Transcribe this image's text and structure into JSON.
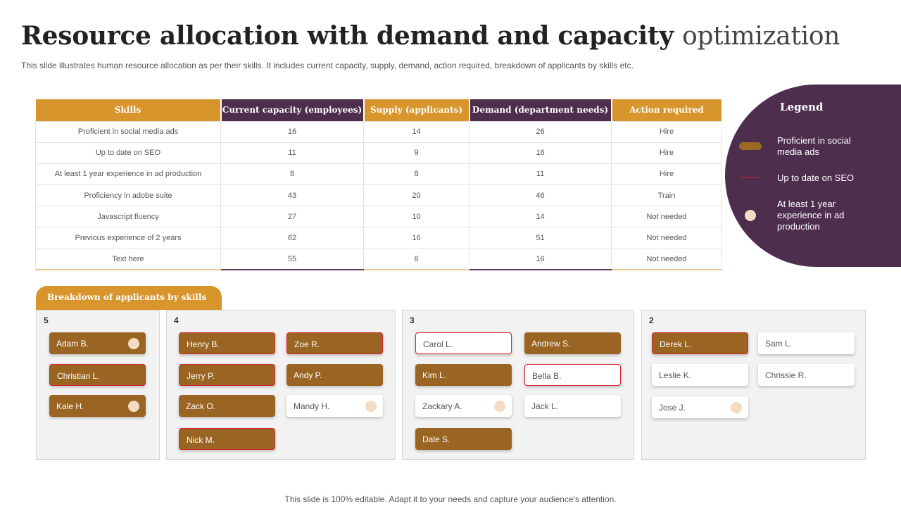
{
  "title_main": "Resource allocation with demand and capacity",
  "title_end": "optimization",
  "subtitle": "This slide illustrates human resource allocation as per their skills. It includes current capacity, supply, demand, action required, breakdown of applicants by skills etc.",
  "table": {
    "headers": [
      "Skills",
      "Current capacity (employees)",
      "Supply (applicants)",
      "Demand (department needs)",
      "Action required"
    ],
    "rows": [
      [
        "Proficient in social media ads",
        "16",
        "14",
        "26",
        "Hire"
      ],
      [
        "Up to date on SEO",
        "11",
        "9",
        "16",
        "Hire"
      ],
      [
        "At least 1 year experience in ad production",
        "8",
        "8",
        "11",
        "Hire"
      ],
      [
        "Proficiency in adobe suite",
        "43",
        "20",
        "46",
        "Train"
      ],
      [
        "Javascript fluency",
        "27",
        "10",
        "14",
        "Not needed"
      ],
      [
        "Previous experience of 2 years",
        "62",
        "16",
        "51",
        "Not needed"
      ],
      [
        "Text here",
        "55",
        "6",
        "16",
        "Not needed"
      ]
    ]
  },
  "legend": {
    "title": "Legend",
    "items": [
      "Proficient in social media ads",
      "Up to date on SEO",
      "At least 1 year experience in ad production"
    ]
  },
  "breakdown": {
    "title": "Breakdown of applicants by skills",
    "panels": [
      {
        "count": "5",
        "names": [
          "Adam B.",
          "Christian L.",
          "Kale H."
        ]
      },
      {
        "count": "4",
        "names": [
          "Henry B.",
          "Zoe R.",
          "Jerry P.",
          "Andy P.",
          "Zack O.",
          "Mandy H.",
          "Nick M."
        ]
      },
      {
        "count": "3",
        "names": [
          "Carol L.",
          "Andrew S.",
          "Kim L.",
          "Bella B.",
          "Zackary A.",
          "Jack L.",
          "Dale S."
        ]
      },
      {
        "count": "2",
        "names": [
          "Derek L.",
          "Sam L.",
          "Leslie K.",
          "Chrissie R.",
          "Jose J."
        ]
      }
    ]
  },
  "colors": {
    "gold": "#d8952c",
    "plum": "#4d2e4d",
    "brown": "#9a6522",
    "red": "#d9232d",
    "cream": "#f2dcc2"
  },
  "footer": "This slide is 100% editable. Adapt it to your needs and capture your audience's attention."
}
